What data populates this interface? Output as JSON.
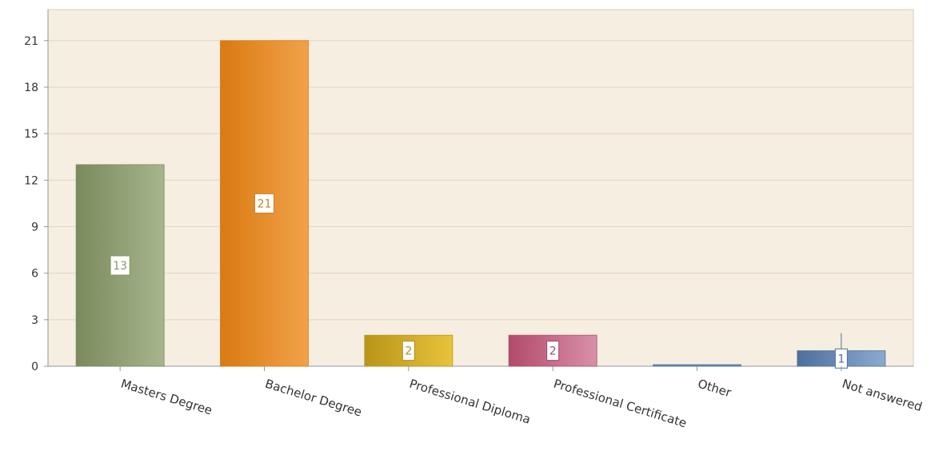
{
  "chart_data": {
    "type": "bar",
    "title": "",
    "xlabel": "",
    "ylabel": "",
    "categories": [
      "Masters Degree",
      "Bachelor Degree",
      "Professional Diploma",
      "Professional Certificate",
      "Other",
      "Not answered"
    ],
    "values": [
      13,
      21,
      2,
      2,
      0,
      1
    ],
    "data_labels": [
      "13",
      "21",
      "2",
      "2",
      "",
      "1"
    ],
    "ylim": [
      0,
      23
    ],
    "yticks": [
      0,
      3,
      6,
      9,
      12,
      15,
      18,
      21
    ],
    "ytick_labels": [
      "0",
      "3",
      "6",
      "9",
      "12",
      "15",
      "18",
      "21"
    ],
    "grid": true,
    "legend": "none",
    "colors": {
      "plot_background": "#f6eee0",
      "gridline": "#ded5c4",
      "axis": "#8d97a5",
      "bars": [
        [
          "#7a8a5c",
          "#a7b58d"
        ],
        [
          "#d97a12",
          "#f2a24a"
        ],
        [
          "#b8941a",
          "#e8c33a"
        ],
        [
          "#b24a6a",
          "#d990a9"
        ],
        [
          "#5d7fa8",
          "#5d7fa8"
        ],
        [
          "#4d6f9c",
          "#8aaad0"
        ]
      ],
      "label_text": [
        "#8a9a6a",
        "#c8822a",
        "#b08e20",
        "#a04a66",
        "#5d7fa8",
        "#4d6f9c"
      ]
    }
  }
}
